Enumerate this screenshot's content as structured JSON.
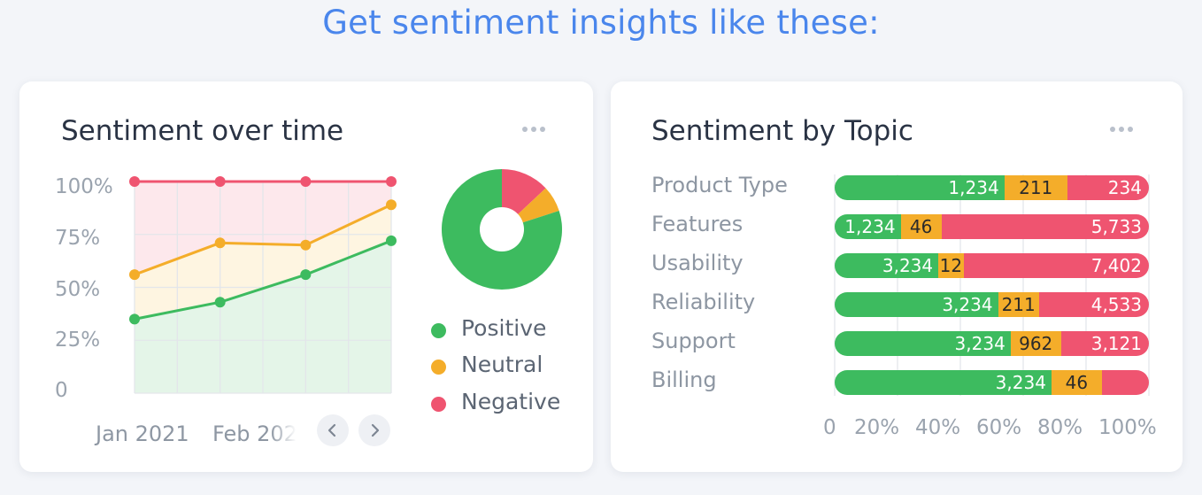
{
  "headline": "Get sentiment insights like these:",
  "colors": {
    "positive": "#3dbb5f",
    "neutral": "#f4ad2a",
    "negative": "#ef5470",
    "accent": "#4a86ec"
  },
  "left_card": {
    "title": "Sentiment over time",
    "y_ticks": [
      "100%",
      "75%",
      "50%",
      "25%",
      "0"
    ],
    "x_dates": [
      "Jan 2021",
      "Feb 202"
    ],
    "legend": [
      "Positive",
      "Neutral",
      "Negative"
    ],
    "more_icon": "ellipsis-icon",
    "prev_icon": "chevron-left-icon",
    "next_icon": "chevron-right-icon"
  },
  "right_card": {
    "title": "Sentiment by Topic",
    "more_icon": "ellipsis-icon"
  },
  "chart_data": [
    {
      "type": "line",
      "title": "Sentiment over time",
      "ylim": [
        0,
        100
      ],
      "y_unit": "%",
      "series": [
        {
          "name": "Negative",
          "values": [
            100,
            100,
            100,
            100
          ]
        },
        {
          "name": "Neutral",
          "values": [
            56,
            71,
            70,
            89
          ]
        },
        {
          "name": "Positive",
          "values": [
            35,
            43,
            56,
            72
          ]
        }
      ]
    },
    {
      "type": "pie",
      "donut": true,
      "slices": [
        {
          "name": "Positive",
          "value": 80
        },
        {
          "name": "Neutral",
          "value": 7
        },
        {
          "name": "Negative",
          "value": 13
        }
      ]
    },
    {
      "type": "bar",
      "orientation": "horizontal",
      "stacked": true,
      "normalized": true,
      "title": "Sentiment by Topic",
      "categories": [
        "Product Type",
        "Features",
        "Usability",
        "Reliability",
        "Support",
        "Billing"
      ],
      "x_ticks": [
        "0",
        "20%",
        "40%",
        "60%",
        "80%",
        "100%"
      ],
      "series": [
        {
          "name": "Positive",
          "values": [
            1234,
            1234,
            3234,
            3234,
            3234,
            3234
          ],
          "labels": [
            "1,234",
            "1,234",
            "3,234",
            "3,234",
            "3,234",
            "3,234"
          ],
          "share": [
            0.54,
            0.21,
            0.33,
            0.52,
            0.56,
            0.69
          ]
        },
        {
          "name": "Neutral",
          "values": [
            211,
            46,
            12,
            211,
            962,
            46
          ],
          "labels": [
            "211",
            "46",
            "12",
            "211",
            "962",
            "46"
          ],
          "share": [
            0.2,
            0.13,
            0.08,
            0.13,
            0.16,
            0.16
          ]
        },
        {
          "name": "Negative",
          "values": [
            234,
            5733,
            7402,
            4533,
            3121,
            null
          ],
          "labels": [
            "234",
            "5,733",
            "7,402",
            "4,533",
            "3,121",
            ""
          ],
          "share": [
            0.26,
            0.66,
            0.59,
            0.35,
            0.28,
            0.15
          ]
        }
      ]
    }
  ]
}
